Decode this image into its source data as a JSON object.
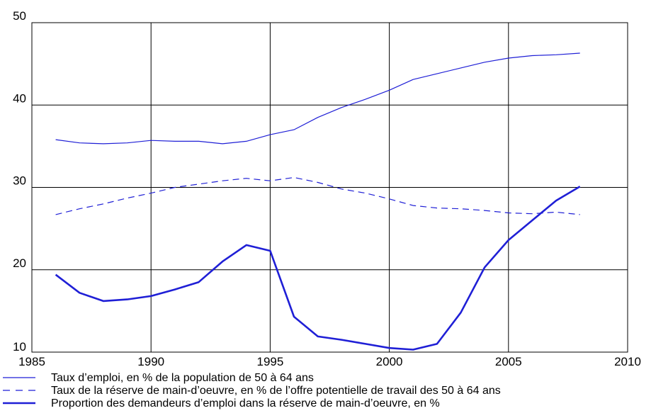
{
  "chart_data": {
    "type": "line",
    "title": "",
    "xlabel": "",
    "ylabel": "",
    "xlim": [
      1985,
      2010
    ],
    "ylim": [
      10,
      50
    ],
    "x_ticks": [
      "1985",
      "1990",
      "1995",
      "2000",
      "2005",
      "2010"
    ],
    "y_ticks": [
      "10",
      "20",
      "30",
      "40",
      "50"
    ],
    "grid": true,
    "legend_position": "bottom",
    "line_color": "#1f1fd6",
    "series": [
      {
        "name": "Taux d’emploi, en % de la population de 50 à 64 ans",
        "style": "solid-thin",
        "x": [
          1986,
          1987,
          1988,
          1989,
          1990,
          1991,
          1992,
          1993,
          1994,
          1995,
          1996,
          1997,
          1998,
          1999,
          2000,
          2001,
          2002,
          2003,
          2004,
          2005,
          2006,
          2007,
          2008
        ],
        "values": [
          35.8,
          35.4,
          35.3,
          35.4,
          35.7,
          35.6,
          35.6,
          35.3,
          35.6,
          36.4,
          37.0,
          38.5,
          39.7,
          40.7,
          41.8,
          43.1,
          43.8,
          44.5,
          45.2,
          45.7,
          46.0,
          46.1,
          46.3
        ]
      },
      {
        "name": "Taux de la réserve de main-d’oeuvre, en % de l’offre potentielle de travail des 50 à 64 ans",
        "style": "dashed",
        "x": [
          1986,
          1987,
          1988,
          1989,
          1990,
          1991,
          1992,
          1993,
          1994,
          1995,
          1996,
          1997,
          1998,
          1999,
          2000,
          2001,
          2002,
          2003,
          2004,
          2005,
          2006,
          2007,
          2008
        ],
        "values": [
          26.7,
          27.4,
          28.0,
          28.7,
          29.3,
          30.0,
          30.4,
          30.8,
          31.1,
          30.8,
          31.2,
          30.6,
          29.8,
          29.3,
          28.6,
          27.8,
          27.5,
          27.4,
          27.2,
          26.9,
          26.8,
          27.0,
          26.7
        ]
      },
      {
        "name": "Proportion des demandeurs d’emploi dans la réserve de main-d’oeuvre, en %",
        "style": "solid-thick",
        "x": [
          1986,
          1987,
          1988,
          1989,
          1990,
          1991,
          1992,
          1993,
          1994,
          1995,
          1996,
          1997,
          1998,
          1999,
          2000,
          2001,
          2002,
          2003,
          2004,
          2005,
          2006,
          2007,
          2008
        ],
        "values": [
          19.4,
          17.2,
          16.2,
          16.4,
          16.8,
          17.6,
          18.5,
          21.0,
          23.0,
          22.3,
          14.3,
          11.9,
          11.5,
          11.0,
          10.5,
          10.3,
          11.0,
          14.8,
          20.3,
          23.6,
          26.0,
          28.4,
          30.1
        ]
      }
    ]
  }
}
